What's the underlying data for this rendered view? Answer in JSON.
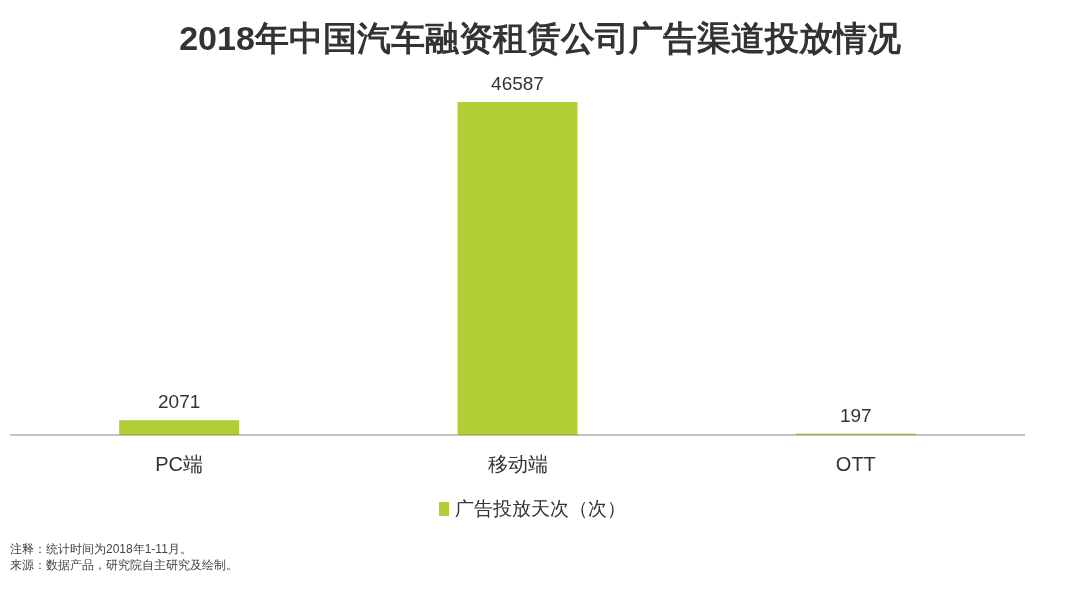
{
  "chart_data": {
    "type": "bar",
    "title": "2018年中国汽车融资租赁公司广告渠道投放情况",
    "categories": [
      "PC端",
      "移动端",
      "OTT"
    ],
    "series": [
      {
        "name": "广告投放天次（次）",
        "color": "#b0cf34",
        "values": [
          2071,
          46587,
          197
        ]
      }
    ],
    "data_labels": true,
    "legend": "bottom",
    "annotations": [
      "注释：统计时间为2018年1-11月。",
      "来源：数据产品，研究院自主研究及绘制。"
    ]
  }
}
